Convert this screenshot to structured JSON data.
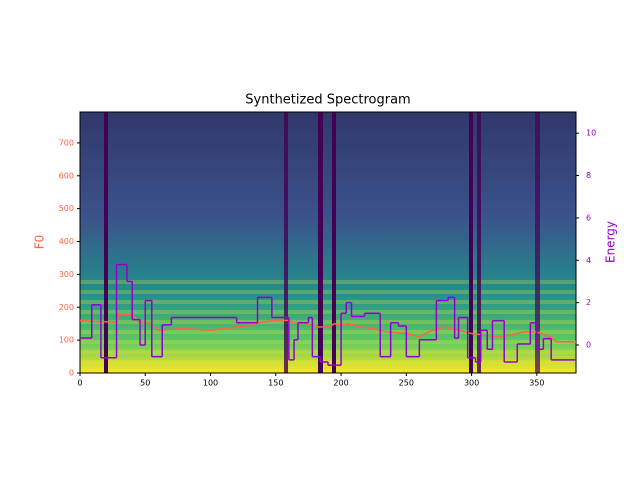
{
  "chart_data": {
    "type": "spectrogram-overlay",
    "title": "Synthetized Spectrogram",
    "ylabel": "F0",
    "y2label": "Energy",
    "xlim": [
      0,
      380
    ],
    "xticks": [
      0,
      50,
      100,
      150,
      200,
      250,
      300,
      350
    ],
    "ylim": [
      0,
      794
    ],
    "yticks": [
      0,
      100,
      200,
      300,
      400,
      500,
      600,
      700
    ],
    "y2lim": [
      -1.32,
      11.0
    ],
    "y2ticks": [
      0,
      2,
      4,
      6,
      8,
      10
    ],
    "series": [
      {
        "name": "F0",
        "color": "#ff6347",
        "step": false,
        "x": [
          0,
          10,
          28,
          30,
          40,
          45,
          55,
          60,
          80,
          100,
          120,
          130,
          140,
          150,
          160,
          165,
          170,
          180,
          190,
          195,
          200,
          205,
          215,
          225,
          235,
          250,
          260,
          270,
          280,
          290,
          300,
          310,
          320,
          330,
          340,
          350,
          360,
          365,
          380
        ],
        "values": [
          160,
          157,
          155,
          180,
          178,
          155,
          150,
          130,
          135,
          130,
          140,
          145,
          155,
          160,
          160,
          150,
          155,
          140,
          140,
          150,
          145,
          150,
          140,
          135,
          125,
          120,
          110,
          130,
          140,
          130,
          120,
          115,
          110,
          115,
          125,
          125,
          110,
          95,
          95
        ]
      },
      {
        "name": "Energy",
        "color": "#9400d3",
        "axis": "y2",
        "step": true,
        "x": [
          0,
          9,
          16,
          28,
          36,
          40,
          46,
          50,
          55,
          63,
          70,
          120,
          136,
          147,
          160,
          164,
          167,
          175,
          178,
          184,
          190,
          200,
          204,
          208,
          218,
          230,
          238,
          244,
          250,
          260,
          273,
          282,
          287,
          290,
          297,
          303,
          307,
          312,
          316,
          325,
          335,
          345,
          350,
          355,
          361
        ],
        "values": [
          0.33,
          1.9,
          -0.6,
          3.8,
          3.0,
          1.2,
          0.0,
          2.1,
          -0.55,
          0.95,
          1.3,
          1.05,
          2.25,
          1.3,
          -0.7,
          0.25,
          1.05,
          1.3,
          -0.55,
          -0.8,
          -0.95,
          1.5,
          2.0,
          1.35,
          1.5,
          -0.55,
          1.05,
          0.9,
          -0.55,
          0.25,
          2.1,
          2.25,
          0.33,
          1.3,
          -0.6,
          -0.8,
          0.7,
          -0.2,
          1.15,
          -0.8,
          0.05,
          1.05,
          -0.2,
          0.3,
          -0.7
        ]
      }
    ]
  }
}
